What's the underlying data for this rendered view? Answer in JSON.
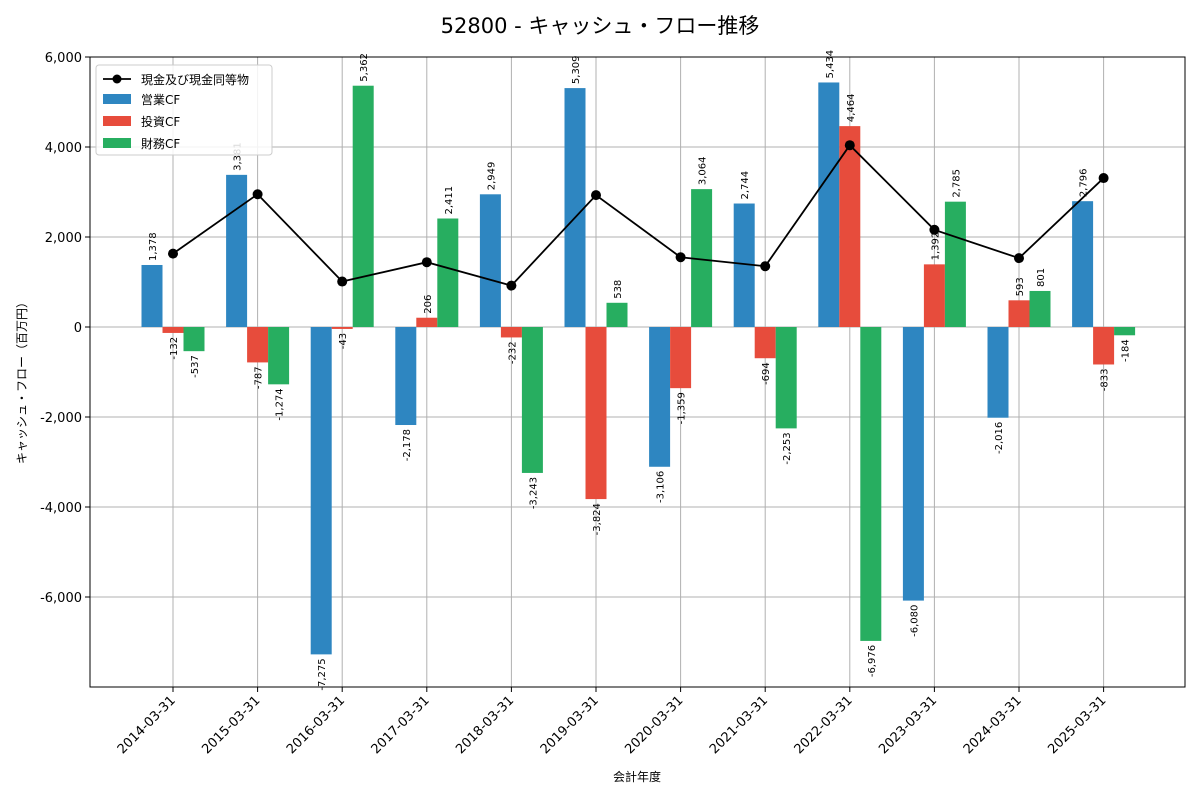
{
  "chart_data": {
    "type": "bar",
    "title": "52800 - キャッシュ・フロー推移",
    "xlabel": "会計年度",
    "ylabel": "キャッシュ・フロー（百万円）",
    "ylim": [
      -8000,
      6000
    ],
    "yticks": [
      -6000,
      -4000,
      -2000,
      0,
      2000,
      4000,
      6000
    ],
    "ytick_labels": [
      "-6,000",
      "-4,000",
      "-2,000",
      "0",
      "2,000",
      "4,000",
      "6,000"
    ],
    "grid": true,
    "legend_position": "top-left",
    "categories": [
      "2014-03-31",
      "2015-03-31",
      "2016-03-31",
      "2017-03-31",
      "2018-03-31",
      "2019-03-31",
      "2020-03-31",
      "2021-03-31",
      "2022-03-31",
      "2023-03-31",
      "2024-03-31",
      "2025-03-31"
    ],
    "series": [
      {
        "name": "営業CF",
        "type": "bar",
        "color": "#2e86c1",
        "values": [
          1378,
          3381,
          -7275,
          -2178,
          2949,
          5309,
          -3106,
          2744,
          5434,
          -6080,
          -2016,
          2796
        ]
      },
      {
        "name": "投資CF",
        "type": "bar",
        "color": "#e74c3c",
        "values": [
          -132,
          -787,
          -43,
          206,
          -232,
          -3824,
          -1359,
          -694,
          4464,
          1392,
          593,
          -833
        ]
      },
      {
        "name": "財務CF",
        "type": "bar",
        "color": "#27ae60",
        "values": [
          -537,
          -1274,
          5362,
          2411,
          -3243,
          538,
          3064,
          -2253,
          -6976,
          2785,
          801,
          -184
        ]
      }
    ],
    "line": {
      "name": "現金及び現金同等物",
      "color": "#000000",
      "values": [
        1630,
        2950,
        1010,
        1440,
        920,
        2930,
        1550,
        1350,
        4040,
        2160,
        1530,
        3310
      ]
    }
  }
}
